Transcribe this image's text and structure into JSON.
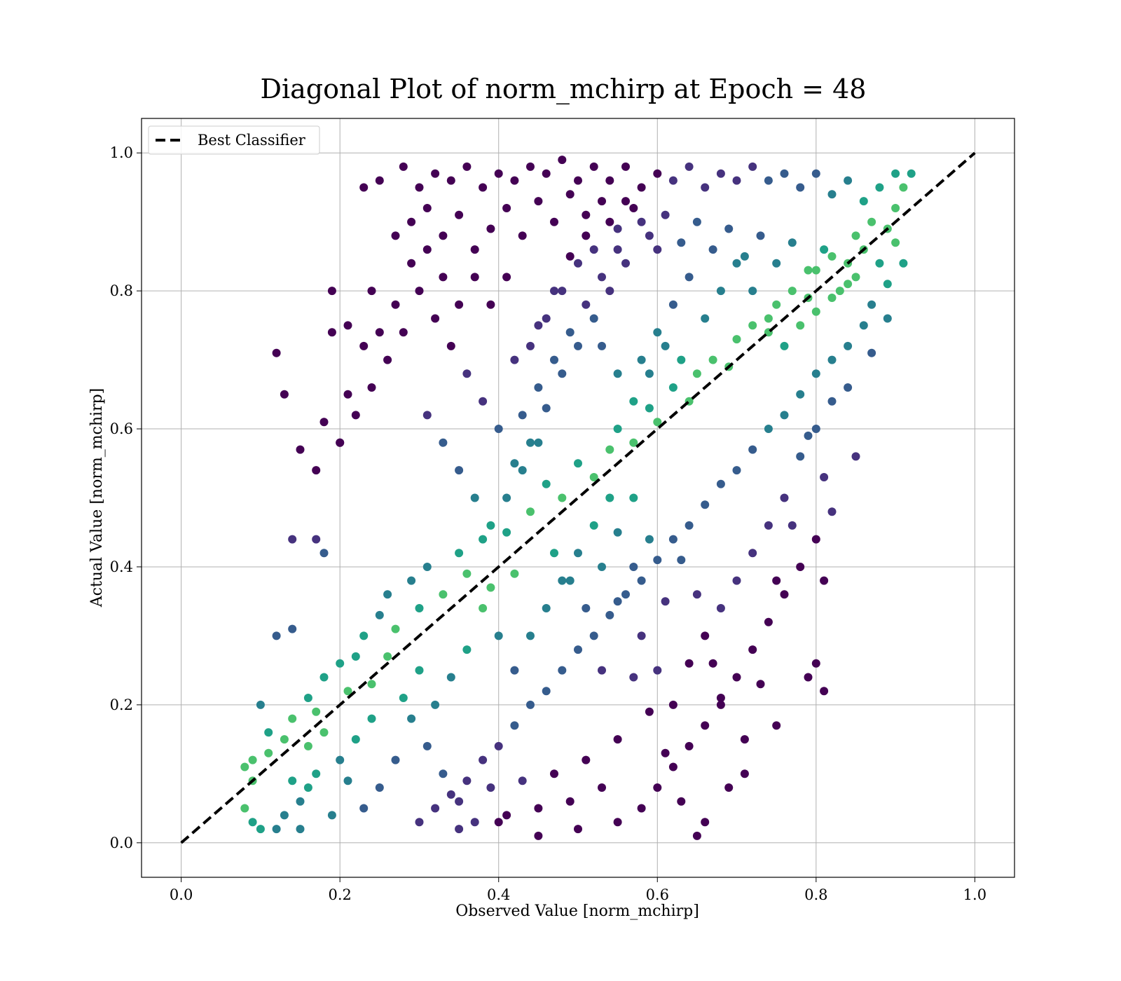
{
  "chart_data": {
    "type": "scatter",
    "title": "Diagonal Plot of norm_mchirp at Epoch = 48",
    "xlabel": "Observed Value [norm_mchirp]",
    "ylabel": "Actual Value [norm_mchirp]",
    "xlim": [
      -0.05,
      1.05
    ],
    "ylim": [
      -0.05,
      1.05
    ],
    "xticks": [
      0.0,
      0.2,
      0.4,
      0.6,
      0.8,
      1.0
    ],
    "xtick_labels": [
      "0.0",
      "0.2",
      "0.4",
      "0.6",
      "0.8",
      "1.0"
    ],
    "yticks": [
      0.0,
      0.2,
      0.4,
      0.6,
      0.8,
      1.0
    ],
    "ytick_labels": [
      "0.0",
      "0.2",
      "0.4",
      "0.6",
      "0.8",
      "1.0"
    ],
    "grid": true,
    "legend": {
      "location": "upper-left",
      "entries": [
        {
          "label": "Best Classifier",
          "style": "dashed",
          "color": "#000000"
        }
      ]
    },
    "reference_line": {
      "name": "Best Classifier",
      "x": [
        0.0,
        1.0
      ],
      "y": [
        0.0,
        1.0
      ],
      "color": "#000000",
      "style": "dashed"
    },
    "colormap": "viridis",
    "points": [
      [
        0.12,
        0.71
      ],
      [
        0.13,
        0.65
      ],
      [
        0.15,
        0.57
      ],
      [
        0.19,
        0.8
      ],
      [
        0.23,
        0.95
      ],
      [
        0.25,
        0.96
      ],
      [
        0.28,
        0.98
      ],
      [
        0.19,
        0.74
      ],
      [
        0.21,
        0.75
      ],
      [
        0.14,
        0.44
      ],
      [
        0.17,
        0.44
      ],
      [
        0.18,
        0.42
      ],
      [
        0.21,
        0.65
      ],
      [
        0.24,
        0.8
      ],
      [
        0.27,
        0.88
      ],
      [
        0.18,
        0.61
      ],
      [
        0.17,
        0.54
      ],
      [
        0.2,
        0.58
      ],
      [
        0.12,
        0.3
      ],
      [
        0.14,
        0.31
      ],
      [
        0.1,
        0.2
      ],
      [
        0.11,
        0.16
      ],
      [
        0.09,
        0.12
      ],
      [
        0.08,
        0.11
      ],
      [
        0.09,
        0.09
      ],
      [
        0.08,
        0.05
      ],
      [
        0.09,
        0.03
      ],
      [
        0.1,
        0.02
      ],
      [
        0.12,
        0.02
      ],
      [
        0.13,
        0.04
      ],
      [
        0.15,
        0.06
      ],
      [
        0.11,
        0.13
      ],
      [
        0.13,
        0.15
      ],
      [
        0.14,
        0.18
      ],
      [
        0.16,
        0.21
      ],
      [
        0.17,
        0.19
      ],
      [
        0.18,
        0.24
      ],
      [
        0.2,
        0.26
      ],
      [
        0.21,
        0.22
      ],
      [
        0.22,
        0.27
      ],
      [
        0.23,
        0.3
      ],
      [
        0.24,
        0.23
      ],
      [
        0.25,
        0.33
      ],
      [
        0.26,
        0.36
      ],
      [
        0.27,
        0.31
      ],
      [
        0.29,
        0.38
      ],
      [
        0.3,
        0.34
      ],
      [
        0.31,
        0.4
      ],
      [
        0.33,
        0.36
      ],
      [
        0.35,
        0.42
      ],
      [
        0.36,
        0.39
      ],
      [
        0.38,
        0.44
      ],
      [
        0.39,
        0.37
      ],
      [
        0.41,
        0.45
      ],
      [
        0.42,
        0.39
      ],
      [
        0.44,
        0.48
      ],
      [
        0.46,
        0.52
      ],
      [
        0.48,
        0.5
      ],
      [
        0.5,
        0.55
      ],
      [
        0.52,
        0.53
      ],
      [
        0.54,
        0.57
      ],
      [
        0.55,
        0.6
      ],
      [
        0.57,
        0.58
      ],
      [
        0.59,
        0.63
      ],
      [
        0.6,
        0.61
      ],
      [
        0.62,
        0.66
      ],
      [
        0.64,
        0.64
      ],
      [
        0.65,
        0.68
      ],
      [
        0.67,
        0.7
      ],
      [
        0.69,
        0.69
      ],
      [
        0.7,
        0.73
      ],
      [
        0.72,
        0.75
      ],
      [
        0.74,
        0.74
      ],
      [
        0.75,
        0.78
      ],
      [
        0.77,
        0.8
      ],
      [
        0.79,
        0.79
      ],
      [
        0.8,
        0.83
      ],
      [
        0.82,
        0.85
      ],
      [
        0.84,
        0.84
      ],
      [
        0.85,
        0.88
      ],
      [
        0.87,
        0.9
      ],
      [
        0.89,
        0.89
      ],
      [
        0.9,
        0.92
      ],
      [
        0.91,
        0.95
      ],
      [
        0.92,
        0.97
      ],
      [
        0.9,
        0.97
      ],
      [
        0.88,
        0.95
      ],
      [
        0.86,
        0.93
      ],
      [
        0.84,
        0.96
      ],
      [
        0.82,
        0.94
      ],
      [
        0.8,
        0.97
      ],
      [
        0.78,
        0.95
      ],
      [
        0.76,
        0.97
      ],
      [
        0.74,
        0.96
      ],
      [
        0.72,
        0.98
      ],
      [
        0.7,
        0.96
      ],
      [
        0.68,
        0.97
      ],
      [
        0.66,
        0.95
      ],
      [
        0.64,
        0.98
      ],
      [
        0.62,
        0.96
      ],
      [
        0.6,
        0.97
      ],
      [
        0.58,
        0.95
      ],
      [
        0.56,
        0.98
      ],
      [
        0.54,
        0.96
      ],
      [
        0.52,
        0.98
      ],
      [
        0.5,
        0.96
      ],
      [
        0.48,
        0.99
      ],
      [
        0.46,
        0.97
      ],
      [
        0.44,
        0.98
      ],
      [
        0.42,
        0.96
      ],
      [
        0.4,
        0.97
      ],
      [
        0.38,
        0.95
      ],
      [
        0.36,
        0.98
      ],
      [
        0.34,
        0.96
      ],
      [
        0.32,
        0.97
      ],
      [
        0.3,
        0.95
      ],
      [
        0.31,
        0.92
      ],
      [
        0.29,
        0.9
      ],
      [
        0.33,
        0.88
      ],
      [
        0.35,
        0.91
      ],
      [
        0.37,
        0.86
      ],
      [
        0.39,
        0.89
      ],
      [
        0.41,
        0.92
      ],
      [
        0.43,
        0.88
      ],
      [
        0.45,
        0.93
      ],
      [
        0.47,
        0.9
      ],
      [
        0.49,
        0.94
      ],
      [
        0.51,
        0.91
      ],
      [
        0.53,
        0.93
      ],
      [
        0.55,
        0.89
      ],
      [
        0.57,
        0.92
      ],
      [
        0.59,
        0.88
      ],
      [
        0.61,
        0.91
      ],
      [
        0.63,
        0.87
      ],
      [
        0.65,
        0.9
      ],
      [
        0.67,
        0.86
      ],
      [
        0.69,
        0.89
      ],
      [
        0.71,
        0.85
      ],
      [
        0.73,
        0.88
      ],
      [
        0.75,
        0.84
      ],
      [
        0.77,
        0.87
      ],
      [
        0.79,
        0.83
      ],
      [
        0.81,
        0.86
      ],
      [
        0.83,
        0.8
      ],
      [
        0.85,
        0.82
      ],
      [
        0.87,
        0.78
      ],
      [
        0.89,
        0.81
      ],
      [
        0.86,
        0.75
      ],
      [
        0.84,
        0.72
      ],
      [
        0.82,
        0.7
      ],
      [
        0.8,
        0.68
      ],
      [
        0.78,
        0.65
      ],
      [
        0.76,
        0.62
      ],
      [
        0.74,
        0.6
      ],
      [
        0.72,
        0.57
      ],
      [
        0.7,
        0.54
      ],
      [
        0.68,
        0.52
      ],
      [
        0.66,
        0.49
      ],
      [
        0.64,
        0.46
      ],
      [
        0.62,
        0.44
      ],
      [
        0.6,
        0.41
      ],
      [
        0.58,
        0.38
      ],
      [
        0.56,
        0.36
      ],
      [
        0.54,
        0.33
      ],
      [
        0.52,
        0.3
      ],
      [
        0.5,
        0.28
      ],
      [
        0.48,
        0.25
      ],
      [
        0.46,
        0.22
      ],
      [
        0.44,
        0.2
      ],
      [
        0.42,
        0.17
      ],
      [
        0.4,
        0.14
      ],
      [
        0.38,
        0.12
      ],
      [
        0.36,
        0.09
      ],
      [
        0.34,
        0.07
      ],
      [
        0.32,
        0.05
      ],
      [
        0.3,
        0.03
      ],
      [
        0.35,
        0.02
      ],
      [
        0.4,
        0.03
      ],
      [
        0.45,
        0.01
      ],
      [
        0.5,
        0.02
      ],
      [
        0.55,
        0.03
      ],
      [
        0.58,
        0.05
      ],
      [
        0.6,
        0.08
      ],
      [
        0.62,
        0.11
      ],
      [
        0.64,
        0.14
      ],
      [
        0.66,
        0.17
      ],
      [
        0.68,
        0.2
      ],
      [
        0.7,
        0.24
      ],
      [
        0.72,
        0.28
      ],
      [
        0.74,
        0.32
      ],
      [
        0.76,
        0.36
      ],
      [
        0.78,
        0.4
      ],
      [
        0.8,
        0.44
      ],
      [
        0.82,
        0.48
      ],
      [
        0.81,
        0.53
      ],
      [
        0.79,
        0.59
      ],
      [
        0.77,
        0.46
      ],
      [
        0.75,
        0.38
      ],
      [
        0.73,
        0.23
      ],
      [
        0.71,
        0.15
      ],
      [
        0.69,
        0.08
      ],
      [
        0.66,
        0.03
      ],
      [
        0.65,
        0.01
      ],
      [
        0.63,
        0.06
      ],
      [
        0.61,
        0.13
      ],
      [
        0.59,
        0.19
      ],
      [
        0.57,
        0.24
      ],
      [
        0.55,
        0.15
      ],
      [
        0.53,
        0.08
      ],
      [
        0.51,
        0.12
      ],
      [
        0.49,
        0.06
      ],
      [
        0.47,
        0.1
      ],
      [
        0.45,
        0.05
      ],
      [
        0.43,
        0.09
      ],
      [
        0.41,
        0.04
      ],
      [
        0.39,
        0.08
      ],
      [
        0.37,
        0.03
      ],
      [
        0.35,
        0.06
      ],
      [
        0.33,
        0.1
      ],
      [
        0.31,
        0.14
      ],
      [
        0.29,
        0.18
      ],
      [
        0.27,
        0.12
      ],
      [
        0.25,
        0.08
      ],
      [
        0.23,
        0.05
      ],
      [
        0.21,
        0.09
      ],
      [
        0.19,
        0.04
      ],
      [
        0.17,
        0.1
      ],
      [
        0.16,
        0.14
      ],
      [
        0.15,
        0.02
      ],
      [
        0.14,
        0.09
      ],
      [
        0.43,
        0.62
      ],
      [
        0.45,
        0.66
      ],
      [
        0.47,
        0.7
      ],
      [
        0.49,
        0.74
      ],
      [
        0.51,
        0.78
      ],
      [
        0.53,
        0.82
      ],
      [
        0.55,
        0.86
      ],
      [
        0.44,
        0.58
      ],
      [
        0.46,
        0.63
      ],
      [
        0.48,
        0.68
      ],
      [
        0.5,
        0.72
      ],
      [
        0.52,
        0.76
      ],
      [
        0.54,
        0.8
      ],
      [
        0.56,
        0.84
      ],
      [
        0.42,
        0.55
      ],
      [
        0.4,
        0.6
      ],
      [
        0.38,
        0.64
      ],
      [
        0.36,
        0.68
      ],
      [
        0.34,
        0.72
      ],
      [
        0.32,
        0.76
      ],
      [
        0.3,
        0.8
      ],
      [
        0.28,
        0.74
      ],
      [
        0.26,
        0.7
      ],
      [
        0.24,
        0.66
      ],
      [
        0.22,
        0.62
      ],
      [
        0.2,
        0.58
      ],
      [
        0.31,
        0.62
      ],
      [
        0.33,
        0.58
      ],
      [
        0.35,
        0.54
      ],
      [
        0.37,
        0.5
      ],
      [
        0.39,
        0.46
      ],
      [
        0.41,
        0.5
      ],
      [
        0.43,
        0.54
      ],
      [
        0.45,
        0.58
      ],
      [
        0.47,
        0.42
      ],
      [
        0.49,
        0.38
      ],
      [
        0.51,
        0.34
      ],
      [
        0.53,
        0.4
      ],
      [
        0.55,
        0.45
      ],
      [
        0.57,
        0.5
      ],
      [
        0.44,
        0.3
      ],
      [
        0.46,
        0.34
      ],
      [
        0.48,
        0.38
      ],
      [
        0.5,
        0.42
      ],
      [
        0.52,
        0.46
      ],
      [
        0.54,
        0.5
      ],
      [
        0.42,
        0.25
      ],
      [
        0.4,
        0.3
      ],
      [
        0.38,
        0.34
      ],
      [
        0.36,
        0.28
      ],
      [
        0.34,
        0.24
      ],
      [
        0.32,
        0.2
      ],
      [
        0.3,
        0.25
      ],
      [
        0.28,
        0.21
      ],
      [
        0.26,
        0.27
      ],
      [
        0.24,
        0.18
      ],
      [
        0.22,
        0.15
      ],
      [
        0.2,
        0.12
      ],
      [
        0.18,
        0.16
      ],
      [
        0.16,
        0.08
      ],
      [
        0.58,
        0.7
      ],
      [
        0.6,
        0.74
      ],
      [
        0.62,
        0.78
      ],
      [
        0.64,
        0.82
      ],
      [
        0.66,
        0.76
      ],
      [
        0.68,
        0.8
      ],
      [
        0.7,
        0.84
      ],
      [
        0.72,
        0.8
      ],
      [
        0.74,
        0.76
      ],
      [
        0.76,
        0.72
      ],
      [
        0.78,
        0.75
      ],
      [
        0.8,
        0.77
      ],
      [
        0.82,
        0.79
      ],
      [
        0.84,
        0.81
      ],
      [
        0.86,
        0.86
      ],
      [
        0.88,
        0.84
      ],
      [
        0.9,
        0.87
      ],
      [
        0.91,
        0.84
      ],
      [
        0.89,
        0.76
      ],
      [
        0.87,
        0.71
      ],
      [
        0.58,
        0.3
      ],
      [
        0.6,
        0.25
      ],
      [
        0.62,
        0.2
      ],
      [
        0.64,
        0.26
      ],
      [
        0.66,
        0.3
      ],
      [
        0.68,
        0.34
      ],
      [
        0.7,
        0.38
      ],
      [
        0.72,
        0.42
      ],
      [
        0.74,
        0.46
      ],
      [
        0.76,
        0.5
      ],
      [
        0.78,
        0.56
      ],
      [
        0.8,
        0.6
      ],
      [
        0.82,
        0.64
      ],
      [
        0.84,
        0.66
      ],
      [
        0.85,
        0.56
      ],
      [
        0.81,
        0.38
      ],
      [
        0.8,
        0.26
      ],
      [
        0.81,
        0.22
      ],
      [
        0.79,
        0.24
      ],
      [
        0.75,
        0.17
      ],
      [
        0.71,
        0.1
      ],
      [
        0.68,
        0.21
      ],
      [
        0.67,
        0.26
      ],
      [
        0.65,
        0.36
      ],
      [
        0.63,
        0.41
      ],
      [
        0.61,
        0.35
      ],
      [
        0.59,
        0.44
      ],
      [
        0.57,
        0.4
      ],
      [
        0.55,
        0.35
      ],
      [
        0.53,
        0.25
      ],
      [
        0.45,
        0.75
      ],
      [
        0.47,
        0.8
      ],
      [
        0.49,
        0.85
      ],
      [
        0.51,
        0.88
      ],
      [
        0.53,
        0.72
      ],
      [
        0.55,
        0.68
      ],
      [
        0.57,
        0.64
      ],
      [
        0.59,
        0.68
      ],
      [
        0.61,
        0.72
      ],
      [
        0.63,
        0.7
      ],
      [
        0.41,
        0.82
      ],
      [
        0.39,
        0.78
      ],
      [
        0.37,
        0.82
      ],
      [
        0.35,
        0.78
      ],
      [
        0.33,
        0.82
      ],
      [
        0.31,
        0.86
      ],
      [
        0.29,
        0.84
      ],
      [
        0.27,
        0.78
      ],
      [
        0.25,
        0.74
      ],
      [
        0.23,
        0.72
      ],
      [
        0.42,
        0.7
      ],
      [
        0.44,
        0.72
      ],
      [
        0.46,
        0.76
      ],
      [
        0.48,
        0.8
      ],
      [
        0.5,
        0.84
      ],
      [
        0.52,
        0.86
      ],
      [
        0.54,
        0.9
      ],
      [
        0.56,
        0.93
      ],
      [
        0.58,
        0.9
      ],
      [
        0.6,
        0.86
      ]
    ]
  }
}
